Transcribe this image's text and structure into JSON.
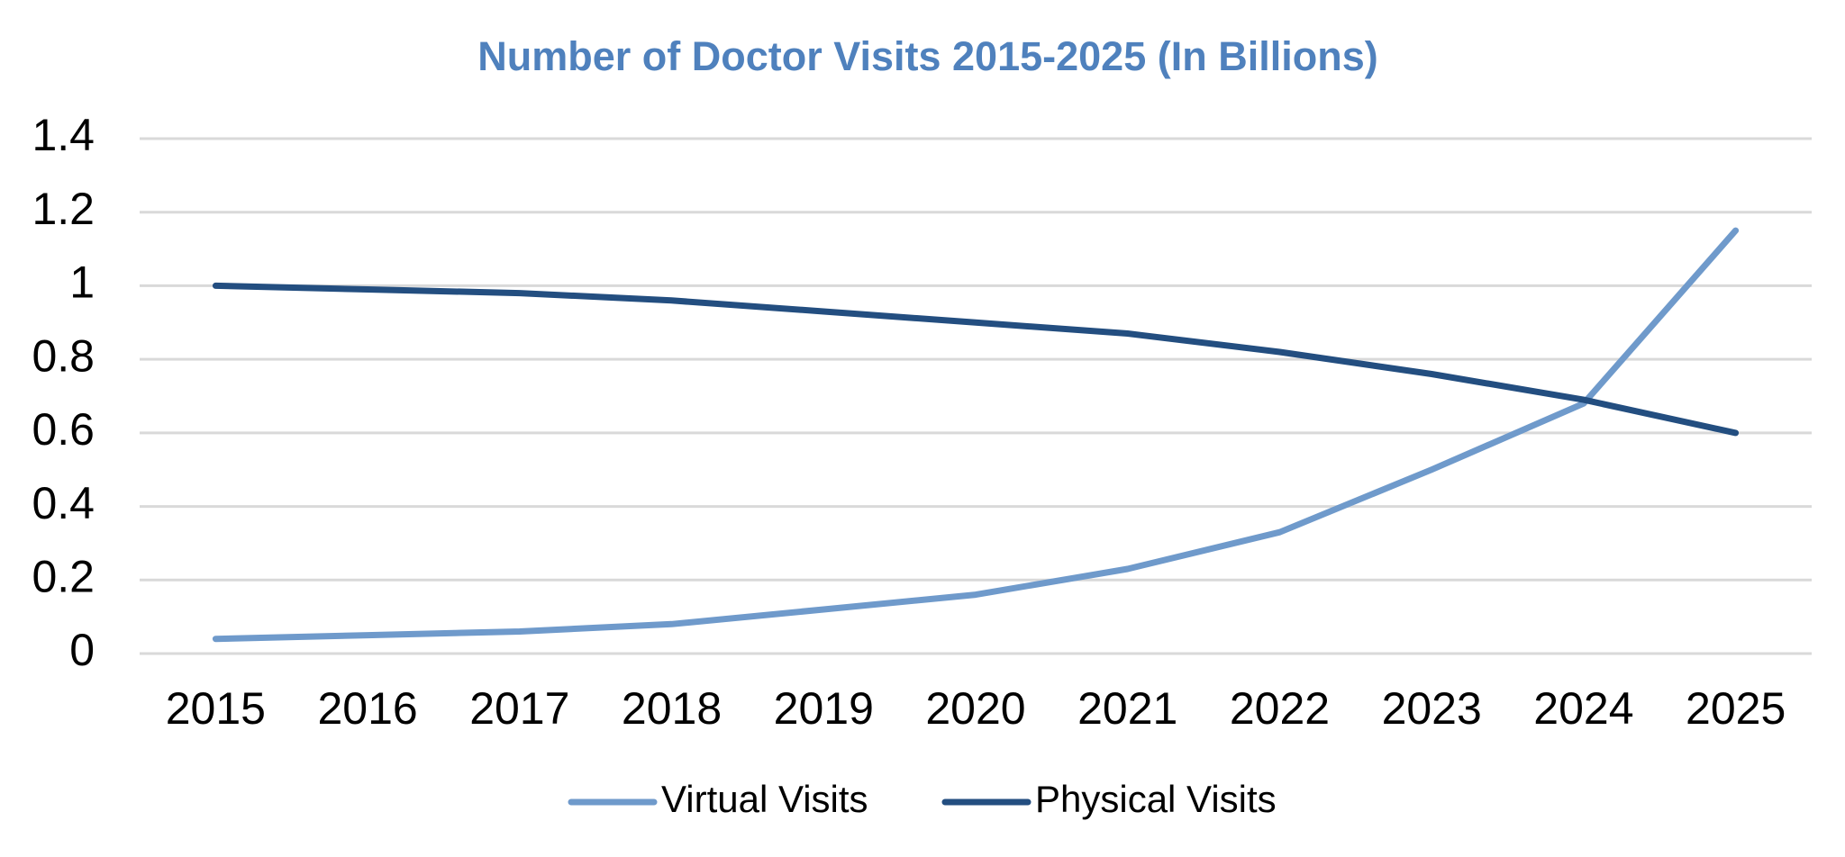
{
  "chart_data": {
    "type": "line",
    "title": "Number of Doctor Visits 2015-2025 (In Billions)",
    "categories": [
      "2015",
      "2016",
      "2017",
      "2018",
      "2019",
      "2020",
      "2021",
      "2022",
      "2023",
      "2024",
      "2025"
    ],
    "series": [
      {
        "name": "Virtual Visits",
        "color": "#6f9acb",
        "values": [
          0.04,
          0.05,
          0.06,
          0.08,
          0.12,
          0.16,
          0.23,
          0.33,
          0.5,
          0.68,
          1.15
        ]
      },
      {
        "name": "Physical Visits",
        "color": "#234e80",
        "values": [
          1.0,
          0.99,
          0.98,
          0.96,
          0.93,
          0.9,
          0.87,
          0.82,
          0.76,
          0.69,
          0.6
        ]
      }
    ],
    "ylim": [
      0,
      1.4
    ],
    "yticks": [
      0,
      0.2,
      0.4,
      0.6,
      0.8,
      1,
      1.2,
      1.4
    ],
    "grid": true,
    "legend": "bottom"
  }
}
